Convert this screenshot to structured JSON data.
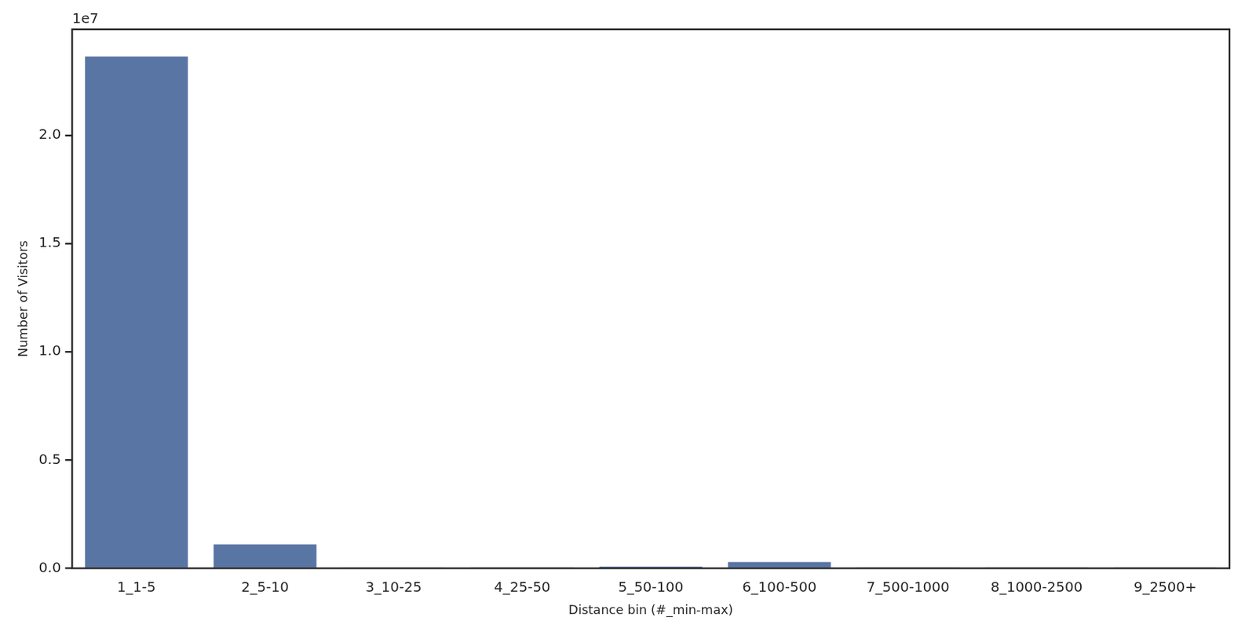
{
  "chart_data": {
    "type": "bar",
    "x_label": "Distance bin (#_min-max)",
    "y_label": "Number of Visitors",
    "annotations": [
      "1e7"
    ],
    "categories": [
      "1_1-5",
      "2_5-10",
      "3_10-25",
      "4_25-50",
      "5_50-100",
      "6_100-500",
      "7_500-1000",
      "8_1000-2500",
      "9_2500+"
    ],
    "values": [
      2.364,
      0.11,
      0.002,
      0.001,
      0.008,
      0.029,
      0.0005,
      0.0003,
      0.0001
    ],
    "color": "#5975a4",
    "ylim": [
      0,
      2.49
    ],
    "yticks": [
      {
        "value": 0,
        "label": "0.0"
      },
      {
        "value": 0.5,
        "label": "0.5"
      },
      {
        "value": 1,
        "label": "1.0"
      },
      {
        "value": 1.5,
        "label": "1.5"
      },
      {
        "value": 2,
        "label": "2.0"
      }
    ],
    "grid": false
  }
}
